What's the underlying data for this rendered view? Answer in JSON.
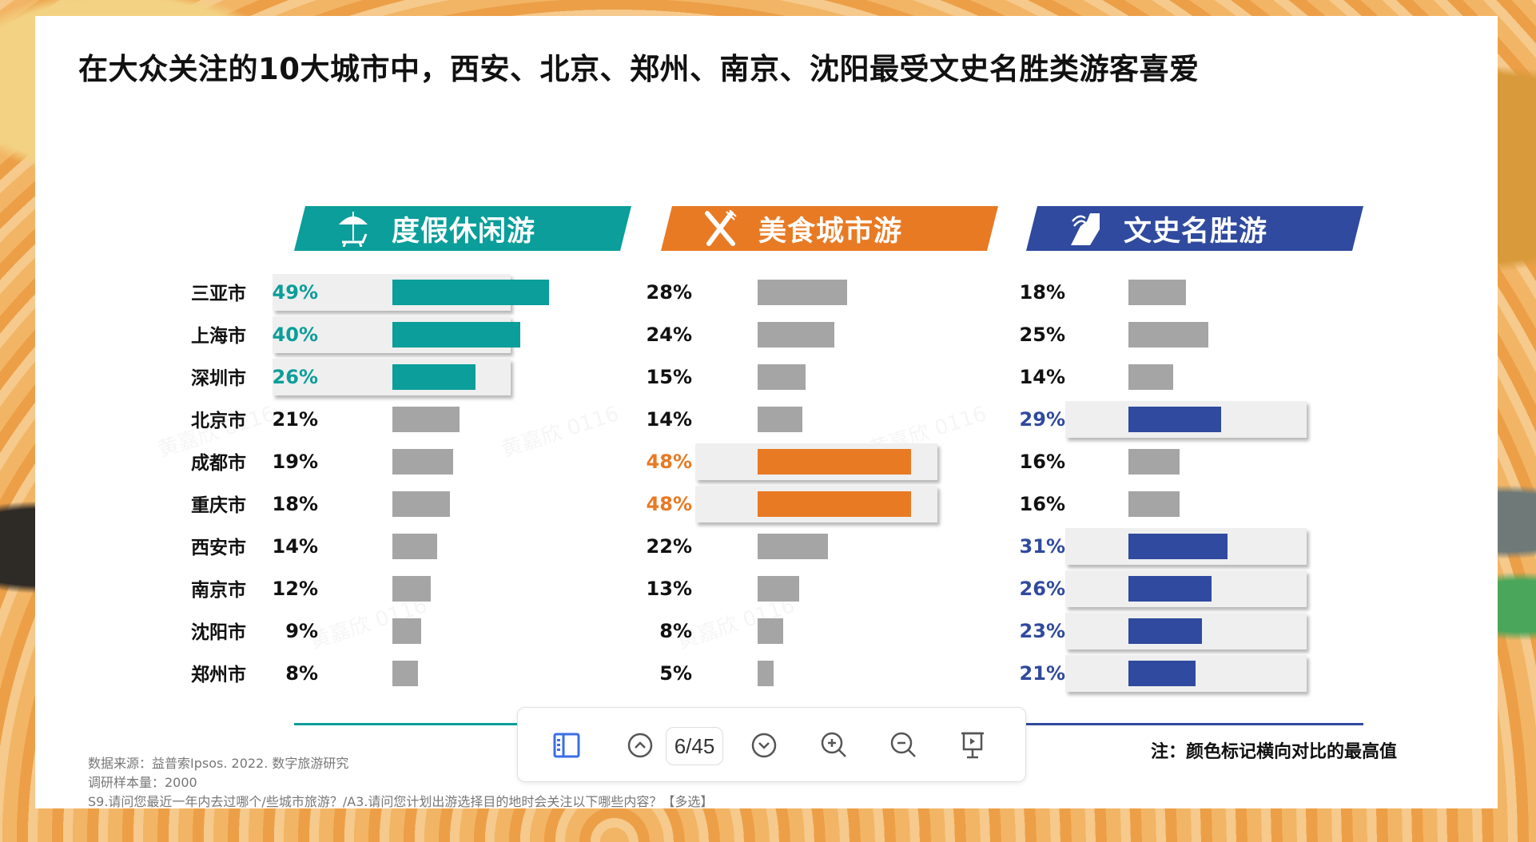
{
  "slide": {
    "title": "在大众关注的10大城市中，西安、北京、郑州、南京、沈阳最受文史名胜类游客喜爱",
    "watermark_text": "黄嘉欣 0116",
    "note": "注：颜色标记横向对比的最高值",
    "footer": {
      "source": "数据来源：益普索Ipsos. 2022. 数字旅游研究",
      "sample": "调研样本量：2000",
      "question": "S9.请问您最近一年内去过哪个/些城市旅游？/A3.请问您计划出游选择目的地时会关注以下哪些内容？【多选】"
    }
  },
  "columns": [
    {
      "key": "leisure",
      "label": "度假休闲游",
      "icon": "beach-umbrella-icon",
      "color": "#0b9e9a"
    },
    {
      "key": "food",
      "label": "美食城市游",
      "icon": "knife-fork-icon",
      "color": "#e87a24"
    },
    {
      "key": "culture",
      "label": "文史名胜游",
      "icon": "landmark-icon",
      "color": "#2f4a9e"
    }
  ],
  "cities": [
    "三亚市",
    "上海市",
    "深圳市",
    "北京市",
    "成都市",
    "重庆市",
    "西安市",
    "南京市",
    "沈阳市",
    "郑州市"
  ],
  "values": {
    "leisure": [
      "49%",
      "40%",
      "26%",
      "21%",
      "19%",
      "18%",
      "14%",
      "12%",
      "9%",
      "8%"
    ],
    "food": [
      "28%",
      "24%",
      "15%",
      "14%",
      "48%",
      "48%",
      "22%",
      "13%",
      "8%",
      "5%"
    ],
    "culture": [
      "18%",
      "25%",
      "14%",
      "29%",
      "16%",
      "16%",
      "31%",
      "26%",
      "23%",
      "21%"
    ]
  },
  "chart_data": {
    "type": "bar",
    "title": "在大众关注的10大城市中，西安、北京、郑州、南京、沈阳最受文史名胜类游客喜爱",
    "orientation": "horizontal",
    "categories": [
      "三亚市",
      "上海市",
      "深圳市",
      "北京市",
      "成都市",
      "重庆市",
      "西安市",
      "南京市",
      "沈阳市",
      "郑州市"
    ],
    "series": [
      {
        "name": "度假休闲游",
        "color": "#0b9e9a",
        "values": [
          49,
          40,
          26,
          21,
          19,
          18,
          14,
          12,
          9,
          8
        ],
        "highlighted": [
          "三亚市",
          "上海市",
          "深圳市"
        ]
      },
      {
        "name": "美食城市游",
        "color": "#e87a24",
        "values": [
          28,
          24,
          15,
          14,
          48,
          48,
          22,
          13,
          8,
          5
        ],
        "highlighted": [
          "成都市",
          "重庆市"
        ]
      },
      {
        "name": "文史名胜游",
        "color": "#2f4a9e",
        "values": [
          18,
          25,
          14,
          29,
          16,
          16,
          31,
          26,
          23,
          21
        ],
        "highlighted": [
          "北京市",
          "西安市",
          "南京市",
          "沈阳市",
          "郑州市"
        ]
      }
    ],
    "unit": "%",
    "non_highlight_color": "#a5a5a5",
    "xlabel": "",
    "ylabel": "",
    "grid": false,
    "annotations": [
      "注：颜色标记横向对比的最高值"
    ]
  },
  "toolbar": {
    "page_indicator": "6/45",
    "buttons": [
      "thumbnails",
      "previous-page",
      "next-page",
      "zoom-in",
      "zoom-out",
      "presentation"
    ]
  }
}
